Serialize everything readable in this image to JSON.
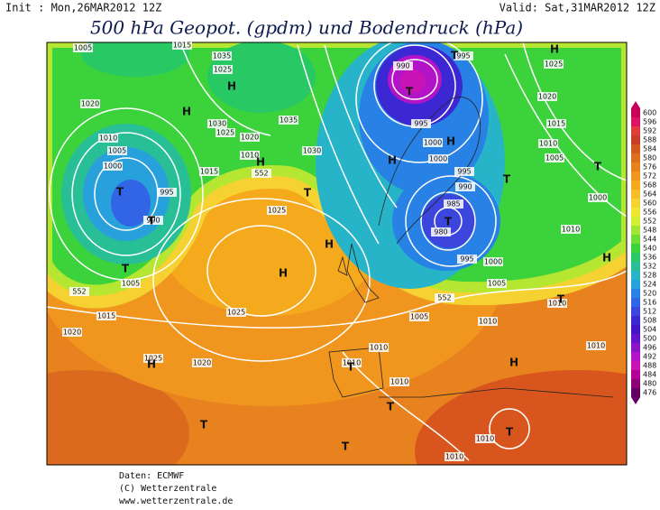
{
  "header": {
    "init": "Init : Mon,26MAR2012 12Z",
    "valid": "Valid: Sat,31MAR2012 12Z",
    "title": "500 hPa Geopot. (gpdm) und Bodendruck (hPa)"
  },
  "colorbar": {
    "levels": [
      600,
      596,
      592,
      588,
      584,
      580,
      576,
      572,
      568,
      564,
      560,
      556,
      552,
      548,
      544,
      540,
      536,
      532,
      528,
      524,
      520,
      516,
      512,
      508,
      504,
      500,
      496,
      492,
      488,
      484,
      480,
      476
    ],
    "colors": [
      "#c8005a",
      "#dc1464",
      "#e03c3c",
      "#c83c28",
      "#d25a1e",
      "#dc6e1e",
      "#e6821e",
      "#f0961e",
      "#f5aa1e",
      "#f5be28",
      "#f5d232",
      "#f0e632",
      "#d2f032",
      "#a0e632",
      "#6edc32",
      "#3cd23c",
      "#28c864",
      "#28be96",
      "#28b4c8",
      "#28a0dc",
      "#2882e6",
      "#3264e6",
      "#3c46dc",
      "#3c28d2",
      "#4614c8",
      "#6414c8",
      "#8c14c8",
      "#b414c8",
      "#c814b4",
      "#b40096",
      "#8c0078",
      "#640064"
    ]
  },
  "map": {
    "isobar_labels": [
      "1005",
      "1015",
      "1035",
      "1025",
      "1020",
      "1030",
      "1025",
      "1020",
      "1035",
      "1030",
      "1010",
      "1005",
      "1000",
      "995",
      "990",
      "1015",
      "1010",
      "552",
      "1025",
      "1005",
      "552",
      "1015",
      "1020",
      "1025",
      "1025",
      "1020",
      "990",
      "995",
      "995",
      "1000",
      "1000",
      "995",
      "990",
      "985",
      "980",
      "995",
      "1000",
      "1005",
      "552",
      "1005",
      "1010",
      "1010",
      "1010",
      "1010",
      "1010",
      "1010",
      "1010",
      "1025",
      "1020",
      "1015",
      "1010",
      "1005",
      "1000",
      "1010",
      "1010"
    ],
    "pressure_centers": [
      "H",
      "H",
      "T",
      "T",
      "T",
      "H",
      "T",
      "H",
      "H",
      "T",
      "T",
      "H",
      "H",
      "T",
      "T",
      "T",
      "T",
      "H",
      "H",
      "H",
      "T",
      "T",
      "T",
      "T",
      "T",
      "H"
    ]
  },
  "footer": {
    "source": "Daten: ECMWF",
    "copyright": "(C) Wetterzentrale",
    "url": "www.wetterzentrale.de"
  }
}
